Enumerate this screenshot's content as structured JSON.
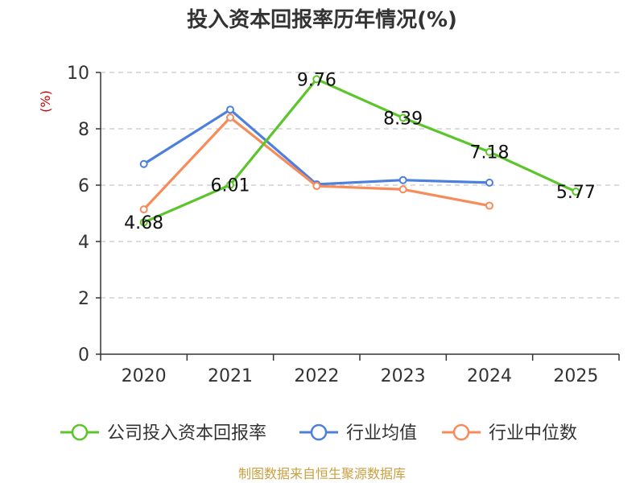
{
  "title": "投入资本回报率历年情况(%)",
  "source": "制图数据来自恒生聚源数据库",
  "chart_data": {
    "type": "line",
    "title": "投入资本回报率历年情况(%)",
    "ylabel": "(%)",
    "ylim": [
      0,
      10
    ],
    "yticks": [
      0,
      2,
      4,
      6,
      8,
      10
    ],
    "categories": [
      "2020",
      "2021",
      "2022",
      "2023",
      "2024",
      "2025"
    ],
    "grid": "horizontal dashed",
    "legend_position": "bottom",
    "series": [
      {
        "name": "公司投入资本回报率",
        "color": "#5cc52b",
        "values": [
          4.68,
          6.01,
          9.76,
          8.39,
          7.18,
          5.77
        ],
        "labels": [
          "4.68",
          "6.01",
          "9.76",
          "8.39",
          "7.18",
          "5.77"
        ]
      },
      {
        "name": "行业均值",
        "color": "#4d7fdc",
        "values": [
          6.75,
          8.68,
          6.03,
          6.18,
          6.09,
          null
        ]
      },
      {
        "name": "行业中位数",
        "color": "#f78c5a",
        "values": [
          5.14,
          8.4,
          5.97,
          5.85,
          5.27,
          null
        ]
      }
    ]
  }
}
